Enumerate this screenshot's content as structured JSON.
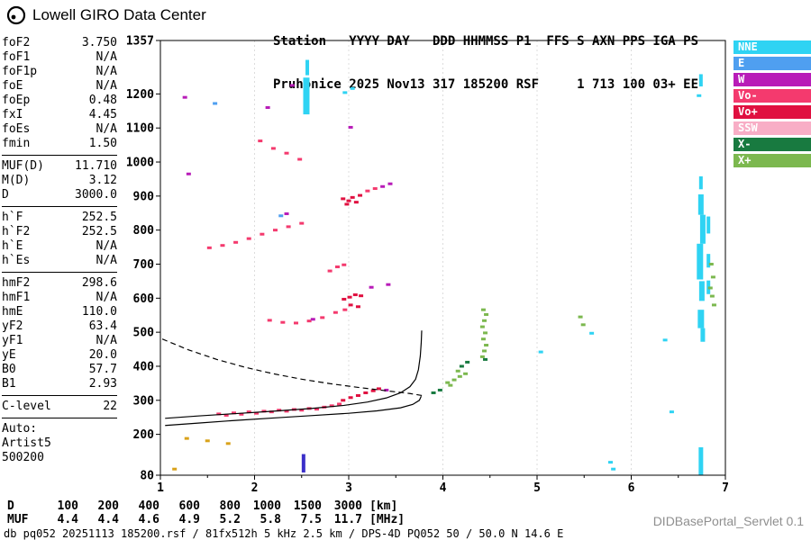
{
  "header": {
    "logo_text": "Lowell GIRO Data Center",
    "station_line1": "Station   YYYY DAY   DDD HHMMSS P1  FFS S AXN PPS IGA PS",
    "station_line2": "Pruhonice 2025 Nov13 317 185200 RSF     1 713 100 03+ EE"
  },
  "params": {
    "groups": [
      {
        "rows": [
          [
            "foF2",
            "3.750"
          ],
          [
            "foF1",
            "N/A"
          ],
          [
            "foF1p",
            "N/A"
          ],
          [
            "foE",
            "N/A"
          ],
          [
            "foEp",
            "0.48"
          ],
          [
            "fxI",
            "4.45"
          ],
          [
            "foEs",
            "N/A"
          ],
          [
            "fmin",
            "1.50"
          ]
        ]
      },
      {
        "rows": [
          [
            "MUF(D)",
            "11.710"
          ],
          [
            "M(D)",
            "3.12"
          ],
          [
            "D",
            "3000.0"
          ]
        ]
      },
      {
        "rows": [
          [
            "h`F",
            "252.5"
          ],
          [
            "h`F2",
            "252.5"
          ],
          [
            "h`E",
            "N/A"
          ],
          [
            "h`Es",
            "N/A"
          ]
        ]
      },
      {
        "rows": [
          [
            "hmF2",
            "298.6"
          ],
          [
            "hmF1",
            "N/A"
          ],
          [
            "hmE",
            "110.0"
          ],
          [
            "yF2",
            "63.4"
          ],
          [
            "yF1",
            "N/A"
          ],
          [
            "yE",
            "20.0"
          ],
          [
            "B0",
            "57.7"
          ],
          [
            "B1",
            "2.93"
          ]
        ]
      },
      {
        "rows": [
          [
            "C-level",
            "22"
          ]
        ]
      },
      {
        "rows": [
          [
            "Auto:",
            ""
          ],
          [
            "Artist5",
            ""
          ],
          [
            "500200",
            ""
          ]
        ]
      }
    ]
  },
  "legend": [
    {
      "label": "NNE",
      "color": "#2fd3f3"
    },
    {
      "label": "E",
      "color": "#4f9ff0"
    },
    {
      "label": "W",
      "color": "#b81cb8"
    },
    {
      "label": "Vo-",
      "color": "#f43a6e"
    },
    {
      "label": "Vo+",
      "color": "#e01040"
    },
    {
      "label": "SSW",
      "color": "#f8aec6"
    },
    {
      "label": "X-",
      "color": "#187a40"
    },
    {
      "label": "X+",
      "color": "#7cb84f"
    }
  ],
  "colors": {
    "NNE": "#2fd3f3",
    "E": "#4f9ff0",
    "W": "#b81cb8",
    "Vo-": "#f43a6e",
    "Vo+": "#e01040",
    "SSW": "#f8aec6",
    "X-": "#187a40",
    "X+": "#7cb84f",
    "amber": "#d9a21a",
    "indigo": "#3b2fc9"
  },
  "footer": {
    "dist_row": {
      "label": "D",
      "values": [
        "100",
        "200",
        "400",
        "600",
        "800",
        "1000",
        "1500",
        "3000"
      ],
      "unit": "[km]"
    },
    "muf_row": {
      "label": "MUF",
      "values": [
        "4.4",
        "4.4",
        "4.6",
        "4.9",
        "5.2",
        "5.8",
        "7.5",
        "11.7"
      ],
      "unit": "[MHz]"
    },
    "status_line": "db pq052 20251113 185200.rsf / 81fx512h 5 kHz 2.5 km / DPS-4D PQ052 50 / 50.0 N 14.6 E",
    "servlet_label": "DIDBasePortal_Servlet 0.1"
  },
  "chart_data": {
    "type": "scatter",
    "title": "Pruhonice ionogram 2025 Nov13 317 185200",
    "x_axis": {
      "label": "MHz",
      "min": 1,
      "max": 7,
      "ticks": [
        1,
        2,
        3,
        4,
        5,
        6,
        7
      ]
    },
    "y_axis": {
      "label": "km",
      "min": 80,
      "max": 1357,
      "tick_labels": [
        1357,
        1200,
        1100,
        1000,
        900,
        800,
        700,
        600,
        500,
        400,
        300,
        200,
        80
      ]
    },
    "points": [
      [
        1.62,
        260,
        "Vo-"
      ],
      [
        1.7,
        256,
        "Vo-"
      ],
      [
        1.78,
        263,
        "Vo-"
      ],
      [
        1.86,
        259,
        "Vo-"
      ],
      [
        1.94,
        266,
        "Vo-"
      ],
      [
        2.02,
        262,
        "Vo-"
      ],
      [
        2.1,
        268,
        "Vo-"
      ],
      [
        2.18,
        266,
        "Vo-"
      ],
      [
        2.26,
        271,
        "Vo-"
      ],
      [
        2.34,
        268,
        "Vo-"
      ],
      [
        2.42,
        273,
        "Vo-"
      ],
      [
        2.5,
        271,
        "Vo-"
      ],
      [
        2.58,
        276,
        "Vo-"
      ],
      [
        2.66,
        274,
        "Vo-"
      ],
      [
        2.74,
        280,
        "Vo-"
      ],
      [
        2.82,
        284,
        "Vo-"
      ],
      [
        2.9,
        289,
        "Vo-"
      ],
      [
        2.94,
        300,
        "Vo+"
      ],
      [
        3.02,
        308,
        "Vo+"
      ],
      [
        3.1,
        314,
        "Vo+"
      ],
      [
        3.18,
        322,
        "Vo+"
      ],
      [
        3.26,
        328,
        "Vo+"
      ],
      [
        3.32,
        334,
        "Vo+"
      ],
      [
        3.4,
        330,
        "W"
      ],
      [
        2.16,
        535,
        "Vo-"
      ],
      [
        2.3,
        529,
        "Vo-"
      ],
      [
        2.44,
        527,
        "Vo-"
      ],
      [
        2.58,
        533,
        "Vo-"
      ],
      [
        2.72,
        543,
        "Vo-"
      ],
      [
        2.86,
        558,
        "Vo-"
      ],
      [
        2.96,
        566,
        "Vo-"
      ],
      [
        2.62,
        538,
        "W"
      ],
      [
        3.02,
        580,
        "Vo+"
      ],
      [
        3.1,
        575,
        "Vo+"
      ],
      [
        2.95,
        597,
        "Vo+"
      ],
      [
        3.01,
        603,
        "Vo+"
      ],
      [
        3.07,
        610,
        "Vo+"
      ],
      [
        3.13,
        607,
        "Vo+"
      ],
      [
        3.24,
        632,
        "W"
      ],
      [
        3.42,
        640,
        "W"
      ],
      [
        2.8,
        680,
        "Vo-"
      ],
      [
        2.88,
        692,
        "Vo-"
      ],
      [
        2.95,
        698,
        "Vo-"
      ],
      [
        1.52,
        748,
        "Vo-"
      ],
      [
        1.66,
        755,
        "Vo-"
      ],
      [
        1.8,
        764,
        "Vo-"
      ],
      [
        1.94,
        775,
        "Vo-"
      ],
      [
        2.08,
        788,
        "Vo-"
      ],
      [
        2.22,
        800,
        "Vo-"
      ],
      [
        2.36,
        810,
        "Vo-"
      ],
      [
        2.5,
        820,
        "Vo-"
      ],
      [
        2.28,
        842,
        "E"
      ],
      [
        2.34,
        848,
        "W"
      ],
      [
        2.94,
        892,
        "Vo+"
      ],
      [
        3.0,
        886,
        "Vo+"
      ],
      [
        3.04,
        896,
        "Vo+"
      ],
      [
        3.08,
        882,
        "Vo+"
      ],
      [
        3.12,
        902,
        "Vo+"
      ],
      [
        2.98,
        876,
        "Vo+"
      ],
      [
        3.2,
        915,
        "Vo-"
      ],
      [
        3.28,
        922,
        "Vo-"
      ],
      [
        3.36,
        928,
        "W"
      ],
      [
        3.44,
        936,
        "W"
      ],
      [
        1.3,
        965,
        "W"
      ],
      [
        2.06,
        1062,
        "Vo-"
      ],
      [
        2.2,
        1040,
        "Vo-"
      ],
      [
        2.34,
        1026,
        "Vo-"
      ],
      [
        2.48,
        1008,
        "Vo-"
      ],
      [
        3.02,
        1102,
        "W"
      ],
      [
        1.26,
        1190,
        "W"
      ],
      [
        2.14,
        1160,
        "W"
      ],
      [
        2.4,
        1225,
        "W"
      ],
      [
        1.58,
        1172,
        "E"
      ],
      [
        2.96,
        1204,
        "NNE"
      ],
      [
        3.04,
        1216,
        "NNE"
      ],
      [
        4.05,
        352,
        "X+"
      ],
      [
        4.12,
        360,
        "X+"
      ],
      [
        4.18,
        370,
        "X+"
      ],
      [
        4.24,
        378,
        "X+"
      ],
      [
        4.16,
        386,
        "X+"
      ],
      [
        4.08,
        344,
        "X+"
      ],
      [
        4.2,
        400,
        "X-"
      ],
      [
        4.26,
        412,
        "X-"
      ],
      [
        3.9,
        322,
        "X-"
      ],
      [
        3.97,
        330,
        "X-"
      ],
      [
        4.42,
        428,
        "X+"
      ],
      [
        4.44,
        445,
        "X+"
      ],
      [
        4.46,
        462,
        "X+"
      ],
      [
        4.43,
        480,
        "X+"
      ],
      [
        4.45,
        498,
        "X+"
      ],
      [
        4.42,
        516,
        "X+"
      ],
      [
        4.44,
        534,
        "X+"
      ],
      [
        4.46,
        552,
        "X+"
      ],
      [
        4.43,
        566,
        "X+"
      ],
      [
        4.45,
        420,
        "X-"
      ],
      [
        5.46,
        545,
        "X+"
      ],
      [
        5.49,
        522,
        "X+"
      ],
      [
        6.85,
        700,
        "X+"
      ],
      [
        6.87,
        662,
        "X+"
      ],
      [
        6.84,
        630,
        "X+"
      ],
      [
        6.86,
        606,
        "X+"
      ],
      [
        6.88,
        580,
        "X+"
      ],
      [
        6.72,
        1195,
        "NNE"
      ],
      [
        5.78,
        118,
        "NNE"
      ],
      [
        5.81,
        98,
        "NNE"
      ],
      [
        6.36,
        477,
        "NNE"
      ],
      [
        6.43,
        266,
        "NNE"
      ],
      [
        5.04,
        442,
        "NNE"
      ],
      [
        5.58,
        497,
        "NNE"
      ],
      [
        1.15,
        98,
        "amber"
      ],
      [
        1.28,
        188,
        "amber"
      ],
      [
        1.5,
        181,
        "amber"
      ],
      [
        1.72,
        173,
        "amber"
      ]
    ],
    "streaks": [
      [
        2.55,
        1140,
        1248,
        "NNE",
        7
      ],
      [
        2.56,
        1255,
        1300,
        "NNE",
        4
      ],
      [
        6.74,
        1222,
        1258,
        "NNE",
        4
      ],
      [
        6.74,
        920,
        958,
        "NNE",
        4
      ],
      [
        6.74,
        845,
        905,
        "NNE",
        6
      ],
      [
        6.76,
        760,
        845,
        "NNE",
        6
      ],
      [
        6.73,
        655,
        760,
        "NNE",
        7
      ],
      [
        6.75,
        592,
        650,
        "NNE",
        6
      ],
      [
        6.74,
        512,
        566,
        "NNE",
        7
      ],
      [
        6.76,
        472,
        512,
        "NNE",
        5
      ],
      [
        6.74,
        80,
        162,
        "NNE",
        5
      ],
      [
        6.82,
        790,
        840,
        "NNE",
        4
      ],
      [
        6.82,
        690,
        730,
        "NNE",
        4
      ],
      [
        6.82,
        612,
        652,
        "NNE",
        4
      ],
      [
        2.52,
        88,
        142,
        "indigo",
        4
      ]
    ],
    "traces": {
      "dashed_muf": [
        [
          1.02,
          480
        ],
        [
          1.3,
          448
        ],
        [
          1.6,
          420
        ],
        [
          1.9,
          397
        ],
        [
          2.2,
          378
        ],
        [
          2.5,
          362
        ],
        [
          2.8,
          349
        ],
        [
          3.1,
          338
        ],
        [
          3.4,
          328
        ],
        [
          3.65,
          320
        ],
        [
          3.78,
          314
        ]
      ],
      "solid_lower": [
        [
          1.05,
          226
        ],
        [
          1.4,
          233
        ],
        [
          1.8,
          241
        ],
        [
          2.2,
          248
        ],
        [
          2.6,
          255
        ],
        [
          3.0,
          262
        ],
        [
          3.3,
          269
        ],
        [
          3.55,
          278
        ],
        [
          3.68,
          288
        ],
        [
          3.75,
          300
        ],
        [
          3.77,
          312
        ]
      ],
      "solid_upper": [
        [
          1.05,
          247
        ],
        [
          1.4,
          254
        ],
        [
          1.8,
          261
        ],
        [
          2.2,
          268
        ],
        [
          2.6,
          276
        ],
        [
          2.95,
          285
        ],
        [
          3.2,
          295
        ],
        [
          3.4,
          307
        ],
        [
          3.55,
          322
        ],
        [
          3.65,
          340
        ],
        [
          3.71,
          362
        ],
        [
          3.74,
          390
        ],
        [
          3.76,
          430
        ],
        [
          3.77,
          470
        ],
        [
          3.775,
          505
        ]
      ]
    }
  }
}
